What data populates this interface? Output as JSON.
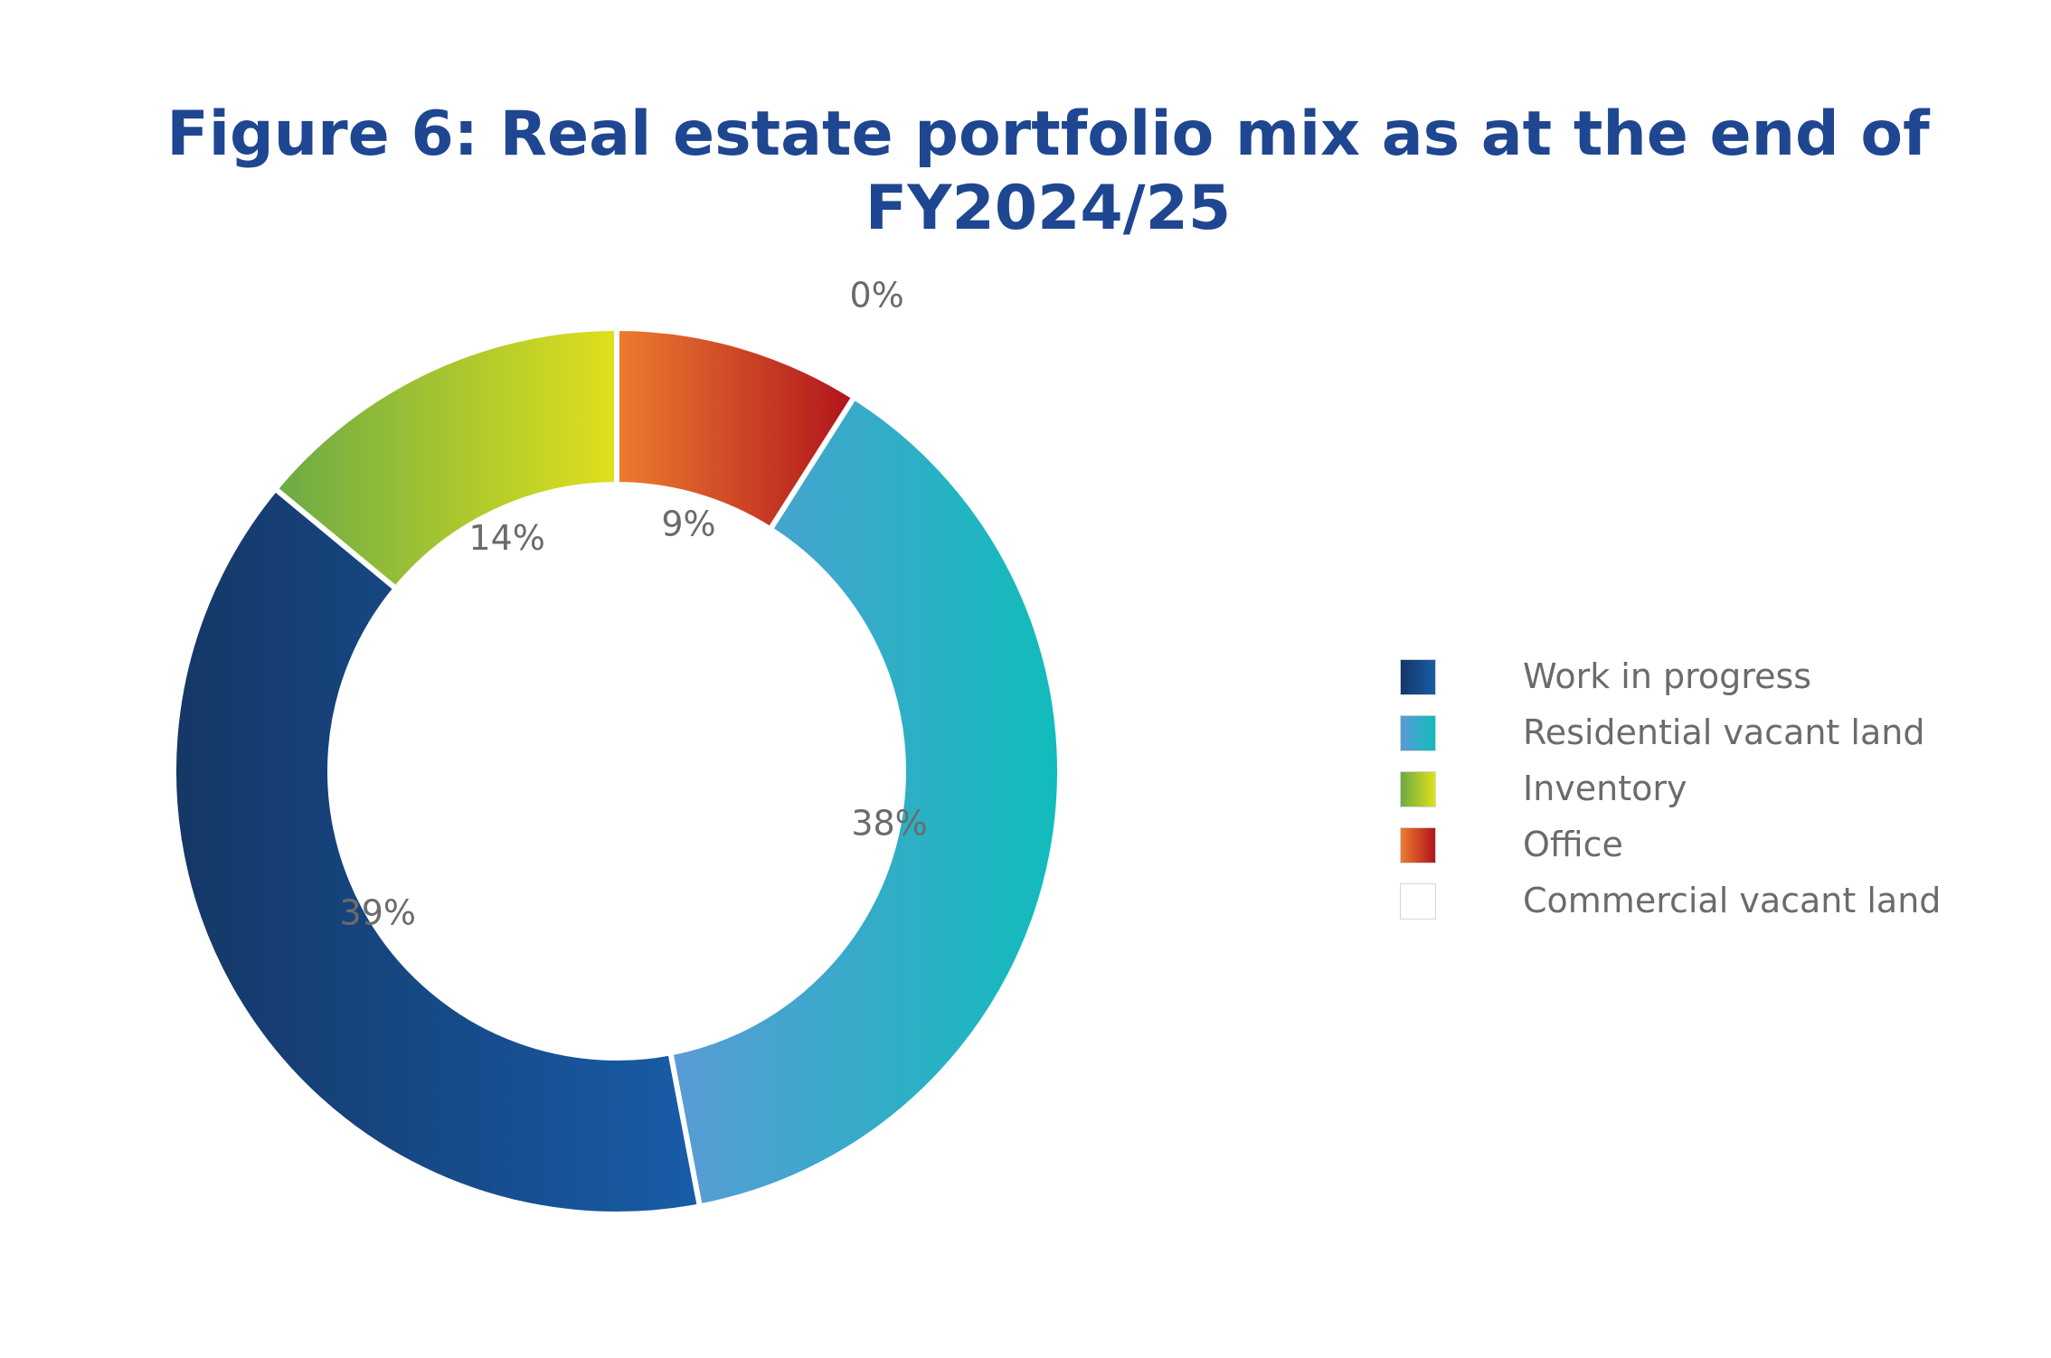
{
  "title": {
    "line1": "Figure 6: Real estate portfolio mix as at the end of",
    "line2": "FY2024/25"
  },
  "chart_data": {
    "type": "pie",
    "donut": true,
    "legend_position": "right",
    "slices": [
      {
        "label": "Office",
        "value": 9,
        "data_label": "9%",
        "gradient": [
          "#ec7c30",
          "#b1141c"
        ]
      },
      {
        "label": "Residential vacant land",
        "value": 38,
        "data_label": "38%",
        "gradient": [
          "#5a9bd6",
          "#10bcbb"
        ]
      },
      {
        "label": "Work in progress",
        "value": 39,
        "data_label": "39%",
        "gradient": [
          "#153766",
          "#185ca8"
        ]
      },
      {
        "label": "Inventory",
        "value": 14,
        "data_label": "14%",
        "gradient": [
          "#6caa45",
          "#dfe01c"
        ]
      },
      {
        "label": "Commercial vacant land",
        "value": 0,
        "data_label": "0%",
        "gradient": [
          "#ffffff",
          "#ffffff"
        ]
      }
    ],
    "legend": [
      {
        "label": "Work in progress",
        "gradient": [
          "#153766",
          "#185ca8"
        ]
      },
      {
        "label": "Residential vacant land",
        "gradient": [
          "#5a9bd6",
          "#10bcbb"
        ]
      },
      {
        "label": "Inventory",
        "gradient": [
          "#6caa45",
          "#dfe01c"
        ]
      },
      {
        "label": "Office",
        "gradient": [
          "#ec7c30",
          "#b1141c"
        ]
      },
      {
        "label": "Commercial vacant land",
        "gradient": [
          "#ffffff",
          "#ffffff"
        ]
      }
    ],
    "colors": {
      "title": "#1f4691",
      "labels": "#6b6b6b"
    }
  }
}
